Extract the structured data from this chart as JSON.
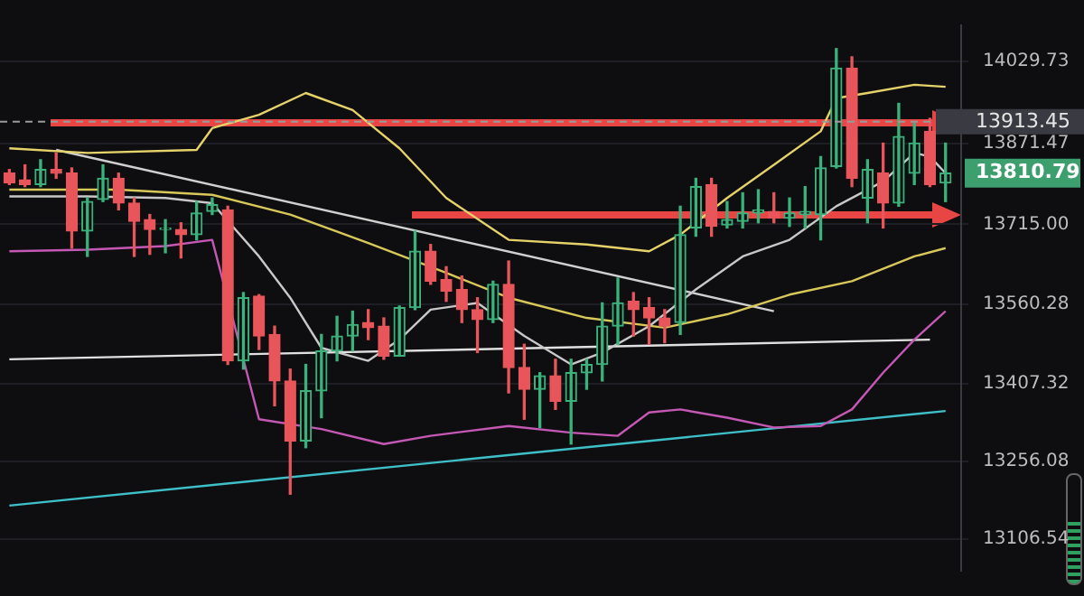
{
  "chart_data": {
    "type": "candlestick",
    "categories": [
      null,
      null,
      null,
      null,
      null,
      null,
      null,
      null,
      null,
      null,
      null,
      null,
      null,
      null,
      null,
      null,
      null,
      null,
      null,
      null,
      null,
      null,
      null,
      null,
      null,
      null,
      null,
      null,
      null,
      null,
      null,
      null,
      null,
      null,
      null,
      null,
      null,
      null,
      null,
      null,
      null,
      null,
      null,
      null,
      null,
      null,
      null,
      null,
      null,
      null,
      null,
      null,
      null,
      null,
      null,
      null,
      null,
      null,
      null,
      null,
      null
    ],
    "ohlc": [
      [
        13814,
        13821,
        13792,
        13795
      ],
      [
        13801,
        13830,
        13788,
        13792
      ],
      [
        13792,
        13840,
        13788,
        13821
      ],
      [
        13821,
        13853,
        13804,
        13814
      ],
      [
        13814,
        13824,
        13669,
        13702
      ],
      [
        13702,
        13766,
        13653,
        13759
      ],
      [
        13763,
        13830,
        13759,
        13804
      ],
      [
        13804,
        13814,
        13743,
        13756
      ],
      [
        13756,
        13766,
        13653,
        13721
      ],
      [
        13724,
        13734,
        13657,
        13705
      ],
      [
        13705,
        13724,
        13660,
        13708
      ],
      [
        13705,
        13718,
        13650,
        13695
      ],
      [
        13695,
        13759,
        13685,
        13737
      ],
      [
        13740,
        13766,
        13734,
        13753
      ],
      [
        13743,
        13750,
        13444,
        13451
      ],
      [
        13451,
        13583,
        13435,
        13573
      ],
      [
        13576,
        13579,
        13473,
        13499
      ],
      [
        13502,
        13518,
        13364,
        13412
      ],
      [
        13412,
        13435,
        13193,
        13296
      ],
      [
        13296,
        13444,
        13283,
        13393
      ],
      [
        13393,
        13502,
        13341,
        13470
      ],
      [
        13470,
        13537,
        13451,
        13499
      ],
      [
        13499,
        13547,
        13470,
        13521
      ],
      [
        13525,
        13550,
        13492,
        13515
      ],
      [
        13518,
        13534,
        13454,
        13460
      ],
      [
        13460,
        13557,
        13460,
        13554
      ],
      [
        13554,
        13702,
        13550,
        13663
      ],
      [
        13663,
        13676,
        13599,
        13605
      ],
      [
        13608,
        13633,
        13566,
        13586
      ],
      [
        13589,
        13615,
        13525,
        13550
      ],
      [
        13550,
        13573,
        13467,
        13531
      ],
      [
        13531,
        13605,
        13525,
        13599
      ],
      [
        13599,
        13644,
        13389,
        13438
      ],
      [
        13438,
        13483,
        13338,
        13396
      ],
      [
        13396,
        13428,
        13322,
        13422
      ],
      [
        13422,
        13454,
        13357,
        13373
      ],
      [
        13373,
        13454,
        13290,
        13428
      ],
      [
        13428,
        13454,
        13396,
        13444
      ],
      [
        13444,
        13563,
        13412,
        13518
      ],
      [
        13518,
        13611,
        13483,
        13563
      ],
      [
        13566,
        13583,
        13499,
        13550
      ],
      [
        13554,
        13573,
        13483,
        13534
      ],
      [
        13534,
        13550,
        13486,
        13518
      ],
      [
        13525,
        13750,
        13502,
        13695
      ],
      [
        13708,
        13804,
        13692,
        13788
      ],
      [
        13792,
        13804,
        13692,
        13711
      ],
      [
        13714,
        13759,
        13708,
        13724
      ],
      [
        13721,
        13776,
        13708,
        13737
      ],
      [
        13737,
        13782,
        13718,
        13743
      ],
      [
        13740,
        13776,
        13718,
        13727
      ],
      [
        13727,
        13766,
        13711,
        13737
      ],
      [
        13734,
        13788,
        13708,
        13740
      ],
      [
        13734,
        13846,
        13685,
        13824
      ],
      [
        13827,
        14055,
        13824,
        14017
      ],
      [
        14017,
        14039,
        13788,
        13804
      ],
      [
        13766,
        13840,
        13718,
        13821
      ],
      [
        13814,
        13872,
        13708,
        13756
      ],
      [
        13756,
        13949,
        13750,
        13885
      ],
      [
        13814,
        13911,
        13792,
        13872
      ],
      [
        13895,
        13920,
        13788,
        13792
      ],
      [
        13795,
        13872,
        13759,
        13814
      ]
    ],
    "colors": [
      "#e8555a",
      "#e8555a",
      "#3bb27b",
      "#e8555a",
      "#e8555a",
      "#3bb27b",
      "#3bb27b",
      "#e8555a",
      "#e8555a",
      "#e8555a",
      "#3bb27b",
      "#e8555a",
      "#3bb27b",
      "#3bb27b",
      "#e8555a",
      "#3bb27b",
      "#e8555a",
      "#e8555a",
      "#e8555a",
      "#3bb27b",
      "#3bb27b",
      "#3bb27b",
      "#3bb27b",
      "#e8555a",
      "#e8555a",
      "#3bb27b",
      "#3bb27b",
      "#e8555a",
      "#e8555a",
      "#e8555a",
      "#e8555a",
      "#3bb27b",
      "#e8555a",
      "#e8555a",
      "#3bb27b",
      "#e8555a",
      "#3bb27b",
      "#3bb27b",
      "#3bb27b",
      "#3bb27b",
      "#e8555a",
      "#e8555a",
      "#e8555a",
      "#3bb27b",
      "#3bb27b",
      "#e8555a",
      "#3bb27b",
      "#3bb27b",
      "#3bb27b",
      "#e8555a",
      "#3bb27b",
      "#3bb27b",
      "#3bb27b",
      "#3bb27b",
      "#e8555a",
      "#3bb27b",
      "#e8555a",
      "#3bb27b",
      "#3bb27b",
      "#e8555a",
      "#3bb27b"
    ],
    "series": [
      {
        "type": "line",
        "color": "#e6d26a",
        "values": [
          13862,
          null,
          null,
          null,
          null,
          13853,
          null,
          null,
          null,
          null,
          null,
          null,
          13859,
          13901,
          null,
          null,
          13927,
          null,
          null,
          13969,
          null,
          null,
          13936,
          null,
          null,
          13862,
          null,
          null,
          13766,
          null,
          null,
          null,
          13685,
          null,
          null,
          null,
          null,
          13676,
          null,
          null,
          null,
          13663,
          null,
          13695,
          null,
          null,
          13766,
          null,
          null,
          13830,
          null,
          null,
          13895,
          13959,
          null,
          13969,
          null,
          null,
          13985,
          null,
          13981
        ]
      },
      {
        "type": "line",
        "color": "#c458b4",
        "values": [
          13663,
          null,
          null,
          null,
          null,
          13666,
          null,
          null,
          null,
          null,
          13673,
          null,
          null,
          13685,
          null,
          null,
          13338,
          null,
          null,
          null,
          13319,
          null,
          null,
          null,
          13290,
          null,
          null,
          13306,
          null,
          null,
          null,
          null,
          13325,
          null,
          null,
          null,
          13312,
          null,
          null,
          13306,
          null,
          13351,
          null,
          13357,
          null,
          null,
          13341,
          null,
          null,
          13322,
          null,
          null,
          13325,
          null,
          13357,
          null,
          13428,
          null,
          13492,
          null,
          13547
        ]
      },
      {
        "type": "line",
        "color": "#c8c8c8",
        "values": [
          13769,
          null,
          null,
          null,
          null,
          13769,
          null,
          null,
          null,
          null,
          13766,
          null,
          null,
          13756,
          null,
          null,
          13653,
          null,
          13573,
          null,
          13476,
          null,
          null,
          13451,
          null,
          13492,
          null,
          13550,
          null,
          null,
          13563,
          null,
          null,
          13499,
          null,
          null,
          13444,
          null,
          13467,
          null,
          null,
          13518,
          null,
          null,
          13589,
          null,
          null,
          13653,
          null,
          null,
          13685,
          null,
          null,
          13750,
          null,
          null,
          13798,
          null,
          13853,
          13846,
          13814
        ]
      },
      {
        "type": "line",
        "color": "#d8c85a",
        "values": [
          13782,
          null,
          null,
          null,
          null,
          null,
          null,
          13782,
          null,
          null,
          null,
          null,
          null,
          13772,
          null,
          null,
          null,
          null,
          13734,
          null,
          null,
          null,
          null,
          13679,
          null,
          null,
          null,
          null,
          13621,
          null,
          null,
          null,
          13573,
          null,
          null,
          null,
          null,
          13534,
          null,
          null,
          null,
          null,
          13515,
          null,
          null,
          null,
          13541,
          null,
          null,
          null,
          13579,
          null,
          null,
          null,
          13605,
          null,
          null,
          null,
          13653,
          null,
          13669
        ]
      },
      {
        "type": "line",
        "color": "#d0d0d0",
        "values": [
          null,
          null,
          null,
          13859,
          null,
          null,
          null,
          null,
          null,
          null,
          null,
          null,
          null,
          null,
          null,
          null,
          null,
          null,
          null,
          null,
          null,
          null,
          null,
          null,
          null,
          null,
          null,
          null,
          null,
          null,
          null,
          null,
          null,
          null,
          null,
          null,
          null,
          null,
          null,
          null,
          null,
          null,
          null,
          null,
          null,
          null,
          null,
          null,
          null,
          13547,
          null,
          null,
          null,
          null,
          null,
          null,
          null,
          null,
          null,
          null,
          null
        ]
      },
      {
        "type": "line",
        "color": "#e0e0e0",
        "values": [
          13454,
          null,
          null,
          null,
          null,
          null,
          null,
          null,
          null,
          null,
          null,
          null,
          null,
          null,
          null,
          null,
          null,
          null,
          null,
          null,
          null,
          null,
          null,
          null,
          null,
          null,
          null,
          null,
          null,
          null,
          null,
          null,
          null,
          null,
          null,
          null,
          null,
          null,
          null,
          null,
          null,
          null,
          null,
          null,
          null,
          null,
          null,
          null,
          null,
          null,
          null,
          null,
          null,
          null,
          null,
          null,
          null,
          null,
          null,
          13492,
          null
        ]
      },
      {
        "type": "line",
        "color": "#3fc0c8",
        "values": [
          13171,
          null,
          null,
          null,
          null,
          null,
          null,
          null,
          null,
          null,
          null,
          null,
          null,
          null,
          null,
          null,
          null,
          null,
          null,
          null,
          null,
          null,
          null,
          null,
          null,
          null,
          null,
          null,
          null,
          null,
          null,
          null,
          null,
          null,
          null,
          null,
          null,
          null,
          null,
          null,
          null,
          null,
          null,
          null,
          null,
          null,
          null,
          null,
          null,
          null,
          null,
          null,
          null,
          null,
          null,
          null,
          null,
          null,
          null,
          null,
          13354
        ]
      }
    ],
    "ylim": [
      13045,
      14100
    ],
    "yticks": [
      14029.73,
      13871.47,
      {
        "value": 13715,
        "label": "13715.00"
      },
      13560.28,
      13407.32,
      13256.08,
      13106.54
    ],
    "ref_lines": [
      {
        "axis": "y",
        "value": 13913.45,
        "label": "13913.45",
        "color": "#9a9a9a",
        "line_style": "dashed"
      }
    ],
    "annotations": [
      "13810.79"
    ],
    "grid": "y",
    "legend": false,
    "marker": "none",
    "tick_labels": "y"
  }
}
